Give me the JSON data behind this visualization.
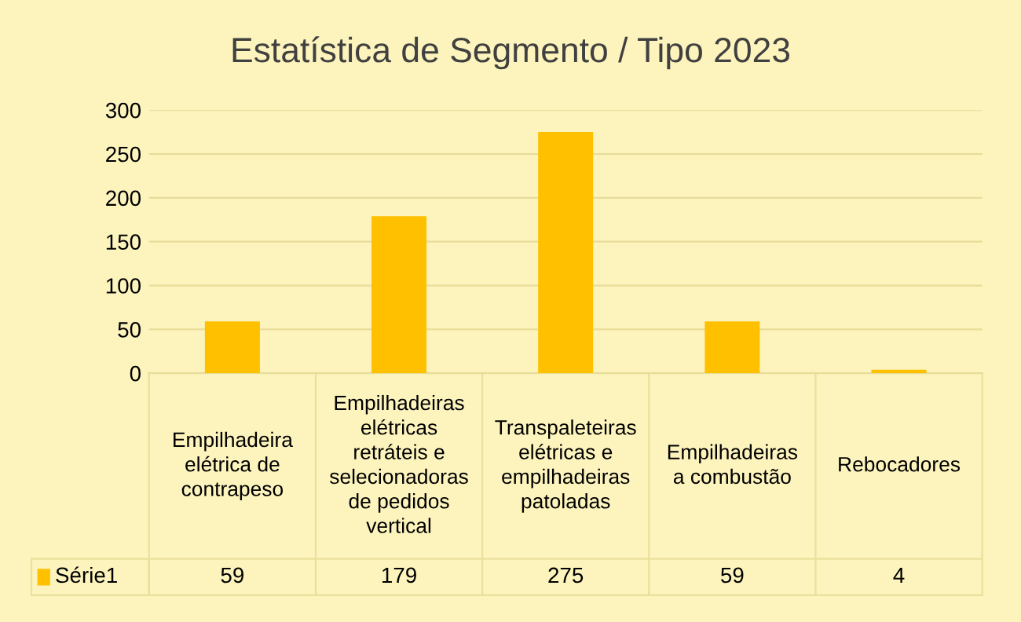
{
  "chart_data": {
    "type": "bar",
    "title": "Estatística de Segmento / Tipo 2023",
    "categories": [
      "Empilhadeira\nelétrica de\ncontrapeso",
      "Empilhadeiras\nelétricas\nretráteis e\nselecionadoras\nde pedidos\nvertical",
      "Transpaleteiras\nelétricas e\nempilhadeiras\npatoladas",
      "Empilhadeiras\na combustão",
      "Rebocadores"
    ],
    "series": [
      {
        "name": "Série1",
        "color": "#ffc000",
        "values": [
          59,
          179,
          275,
          59,
          4
        ]
      }
    ],
    "ylim": [
      0,
      300
    ],
    "yticks": [
      0,
      50,
      100,
      150,
      200,
      250,
      300
    ],
    "grid": "y",
    "data_labels": true
  }
}
